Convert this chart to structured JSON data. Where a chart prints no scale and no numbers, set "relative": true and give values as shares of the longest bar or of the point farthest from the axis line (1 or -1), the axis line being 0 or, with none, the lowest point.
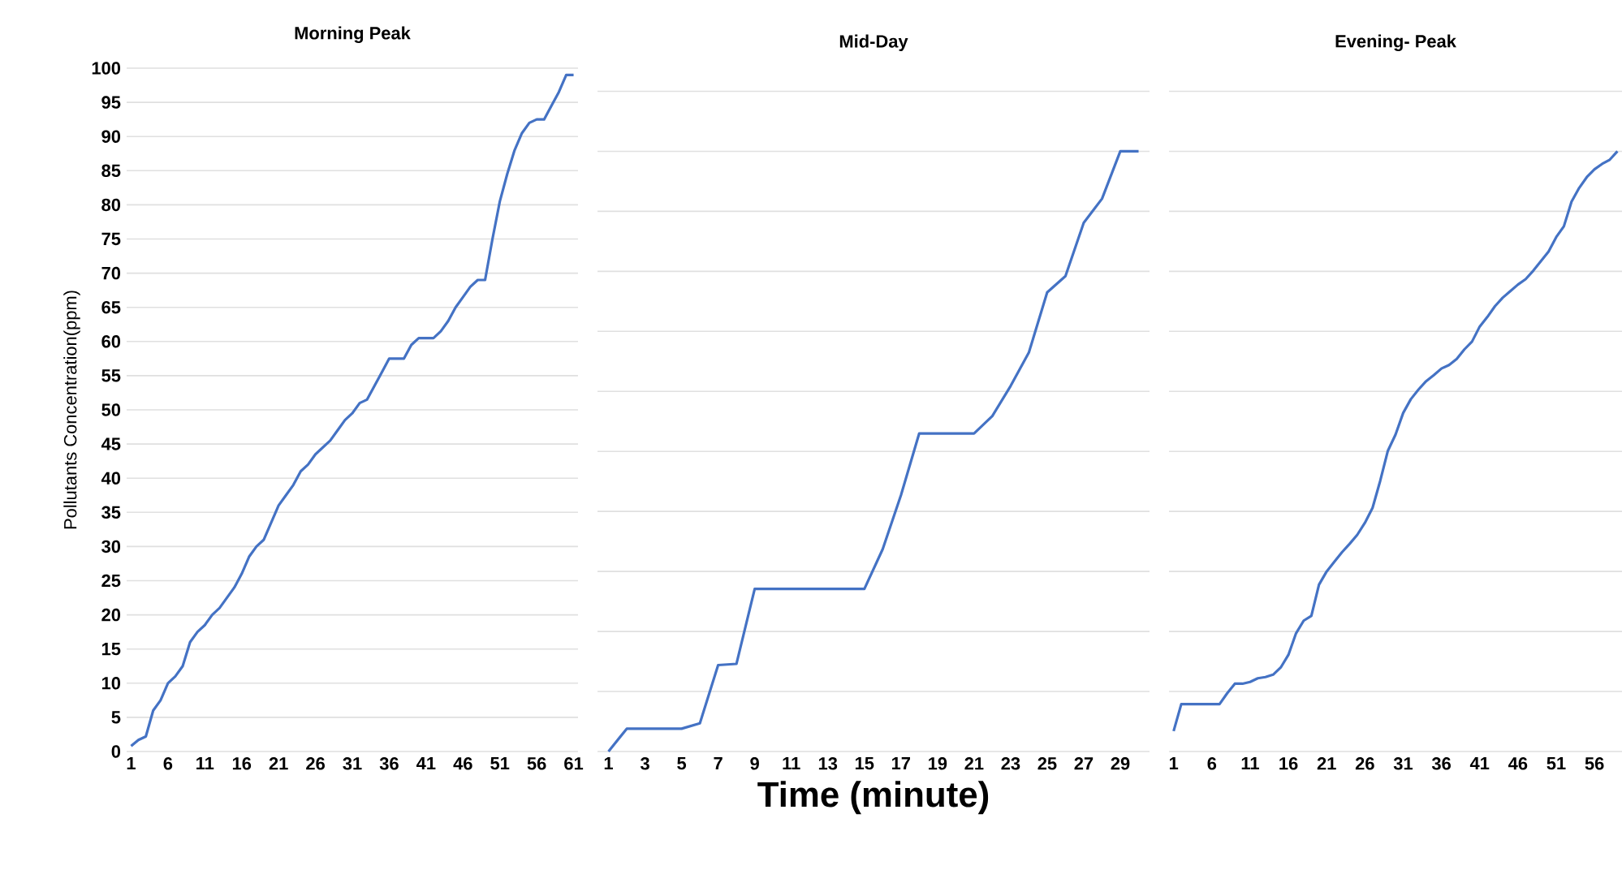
{
  "chart_data": [
    {
      "type": "line",
      "title": "Morning Peak",
      "ylabel": "Pollutants Concentration(ppm)",
      "color": "#4472c4",
      "grid": "y",
      "categories": [
        "1",
        null,
        null,
        null,
        null,
        "6",
        null,
        null,
        null,
        null,
        "11",
        null,
        null,
        null,
        null,
        "16",
        null,
        null,
        null,
        null,
        "21",
        null,
        null,
        null,
        null,
        "26",
        null,
        null,
        null,
        null,
        "31",
        null,
        null,
        null,
        null,
        "36",
        null,
        null,
        null,
        null,
        "41",
        null,
        null,
        null,
        null,
        "46",
        null,
        null,
        null,
        null,
        "51",
        null,
        null,
        null,
        null,
        "56",
        null,
        null,
        null,
        null,
        "61"
      ],
      "values": [
        0.8,
        1.7,
        2.2,
        6,
        7.5,
        10,
        11,
        12.5,
        16,
        17.5,
        18.5,
        20,
        21,
        22.5,
        24,
        26,
        28.5,
        30,
        31,
        33.5,
        36,
        37.5,
        39,
        41,
        42,
        43.5,
        44.5,
        45.5,
        47,
        48.5,
        49.5,
        51,
        51.5,
        53.5,
        55.5,
        57.5,
        57.5,
        57.5,
        59.5,
        60.5,
        60.5,
        60.5,
        61.5,
        63,
        65,
        66.5,
        68,
        69,
        69,
        75,
        80.5,
        84.5,
        88,
        90.5,
        92,
        92.5,
        92.5,
        94.5,
        96.5,
        99,
        99
      ],
      "ylim": [
        0,
        100
      ],
      "yticks": [
        0,
        5,
        10,
        15,
        20,
        25,
        30,
        35,
        40,
        45,
        50,
        55,
        60,
        65,
        70,
        75,
        80,
        85,
        90,
        95,
        100
      ]
    },
    {
      "type": "line",
      "title": "Mid-Day",
      "xlabel": "Time (minute)",
      "color": "#4472c4",
      "grid": "y",
      "relative": true,
      "categories": [
        "1",
        null,
        "3",
        null,
        "5",
        null,
        "7",
        null,
        "9",
        null,
        "11",
        null,
        "13",
        null,
        "15",
        null,
        "17",
        null,
        "19",
        null,
        "21",
        null,
        "23",
        null,
        "25",
        null,
        "27",
        null,
        "29",
        null
      ],
      "values": [
        0,
        0.038,
        0.038,
        0.038,
        0.038,
        0.047,
        0.144,
        0.146,
        0.271,
        0.271,
        0.271,
        0.271,
        0.271,
        0.271,
        0.271,
        0.337,
        0.427,
        0.53,
        0.53,
        0.53,
        0.53,
        0.559,
        0.609,
        0.665,
        0.765,
        0.792,
        0.881,
        0.921,
        1,
        1
      ]
    },
    {
      "type": "line",
      "title": "Evening- Peak",
      "color": "#4472c4",
      "grid": "y",
      "relative": true,
      "categories": [
        "1",
        null,
        null,
        null,
        null,
        "6",
        null,
        null,
        null,
        null,
        "11",
        null,
        null,
        null,
        null,
        "16",
        null,
        null,
        null,
        null,
        "21",
        null,
        null,
        null,
        null,
        "26",
        null,
        null,
        null,
        null,
        "31",
        null,
        null,
        null,
        null,
        "36",
        null,
        null,
        null,
        null,
        "41",
        null,
        null,
        null,
        null,
        "46",
        null,
        null,
        null,
        null,
        "51",
        null,
        null,
        null,
        null,
        "56",
        null,
        null,
        null
      ],
      "values": [
        0.034,
        0.079,
        0.079,
        0.079,
        0.079,
        0.079,
        0.079,
        0.097,
        0.113,
        0.113,
        0.116,
        0.122,
        0.124,
        0.128,
        0.14,
        0.161,
        0.197,
        0.218,
        0.226,
        0.278,
        0.3,
        0.316,
        0.332,
        0.346,
        0.361,
        0.381,
        0.406,
        0.451,
        0.501,
        0.528,
        0.564,
        0.587,
        0.603,
        0.617,
        0.627,
        0.638,
        0.644,
        0.654,
        0.67,
        0.683,
        0.708,
        0.724,
        0.742,
        0.756,
        0.767,
        0.778,
        0.787,
        0.801,
        0.817,
        0.833,
        0.857,
        0.875,
        0.916,
        0.939,
        0.957,
        0.97,
        0.979,
        0.986,
        1
      ]
    }
  ]
}
